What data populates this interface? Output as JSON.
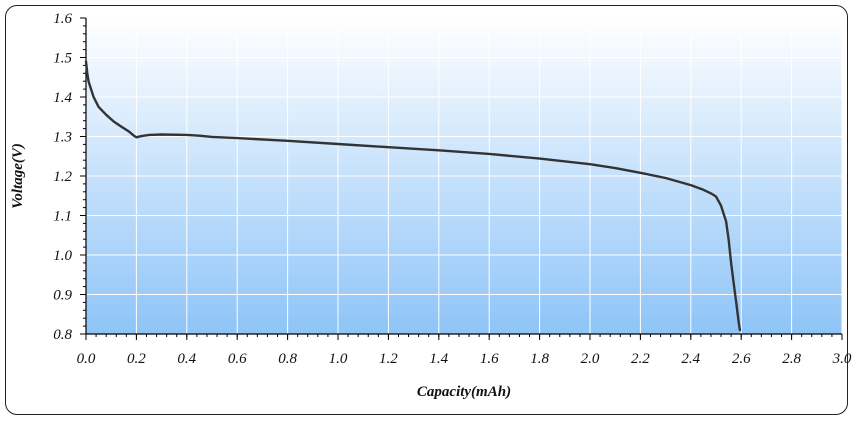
{
  "chart_data": {
    "type": "line",
    "title": "",
    "xlabel": "Capacity(mAh)",
    "ylabel": "Voltage(V)",
    "xlim": [
      0.0,
      3.0
    ],
    "ylim": [
      0.8,
      1.6
    ],
    "x_ticks": [
      "0.0",
      "0.2",
      "0.4",
      "0.6",
      "0.8",
      "1.0",
      "1.2",
      "1.4",
      "1.6",
      "1.8",
      "2.0",
      "2.2",
      "2.4",
      "2.6",
      "2.8",
      "3.0"
    ],
    "y_ticks": [
      "0.8",
      "0.9",
      "1.0",
      "1.1",
      "1.2",
      "1.3",
      "1.4",
      "1.5",
      "1.6"
    ],
    "grid": true,
    "legend": "none",
    "background_gradient": [
      "#ffffff",
      "#8ec4f8"
    ],
    "line_color": "#333333",
    "series": [
      {
        "x": [
          0.0,
          0.005,
          0.01,
          0.02,
          0.03,
          0.05,
          0.08,
          0.11,
          0.14,
          0.17,
          0.19,
          0.2,
          0.22,
          0.25,
          0.3,
          0.4,
          0.45,
          0.5,
          0.6,
          0.8,
          1.0,
          1.2,
          1.4,
          1.6,
          1.8,
          2.0,
          2.1,
          2.2,
          2.3,
          2.4,
          2.45,
          2.48,
          2.5,
          2.52,
          2.54,
          2.55,
          2.56,
          2.57,
          2.58,
          2.59,
          2.595
        ],
        "y": [
          1.49,
          1.46,
          1.44,
          1.42,
          1.4,
          1.375,
          1.355,
          1.338,
          1.325,
          1.313,
          1.302,
          1.298,
          1.301,
          1.304,
          1.305,
          1.304,
          1.302,
          1.299,
          1.296,
          1.289,
          1.281,
          1.273,
          1.265,
          1.256,
          1.244,
          1.23,
          1.22,
          1.208,
          1.195,
          1.177,
          1.165,
          1.156,
          1.148,
          1.125,
          1.085,
          1.04,
          0.98,
          0.93,
          0.88,
          0.83,
          0.81
        ]
      }
    ]
  }
}
